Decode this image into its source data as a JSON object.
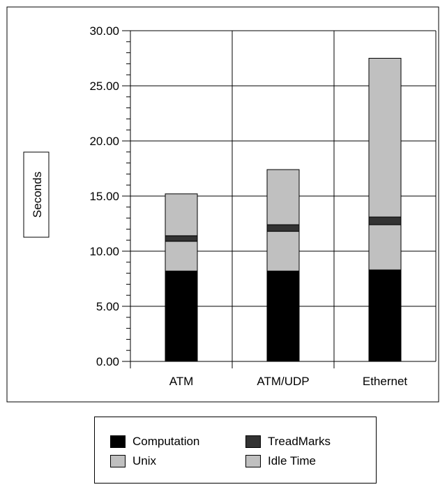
{
  "chart_data": {
    "type": "bar",
    "stacked": true,
    "ylabel": "Seconds",
    "ylim": [
      0,
      30
    ],
    "y_ticks": [
      "0.00",
      "5.00",
      "10.00",
      "15.00",
      "20.00",
      "25.00",
      "30.00"
    ],
    "categories": [
      "ATM",
      "ATM/UDP",
      "Ethernet"
    ],
    "grid": true,
    "legend_position": "bottom",
    "series": [
      {
        "name": "Computation",
        "color": "#000000",
        "values": [
          8.2,
          8.2,
          8.3
        ]
      },
      {
        "name": "Unix",
        "color": "#c0c0c0",
        "values": [
          2.7,
          3.6,
          4.1
        ]
      },
      {
        "name": "TreadMarks",
        "color": "#333333",
        "values": [
          0.5,
          0.6,
          0.7
        ]
      },
      {
        "name": "Idle Time",
        "color": "#c0c0c0",
        "values": [
          3.8,
          5.0,
          14.4
        ]
      }
    ]
  },
  "legend": {
    "items": [
      {
        "label": "Computation",
        "color": "#000000"
      },
      {
        "label": "TreadMarks",
        "color": "#333333"
      },
      {
        "label": "Unix",
        "color": "#c0c0c0"
      },
      {
        "label": "Idle Time",
        "color": "#c0c0c0"
      }
    ]
  }
}
